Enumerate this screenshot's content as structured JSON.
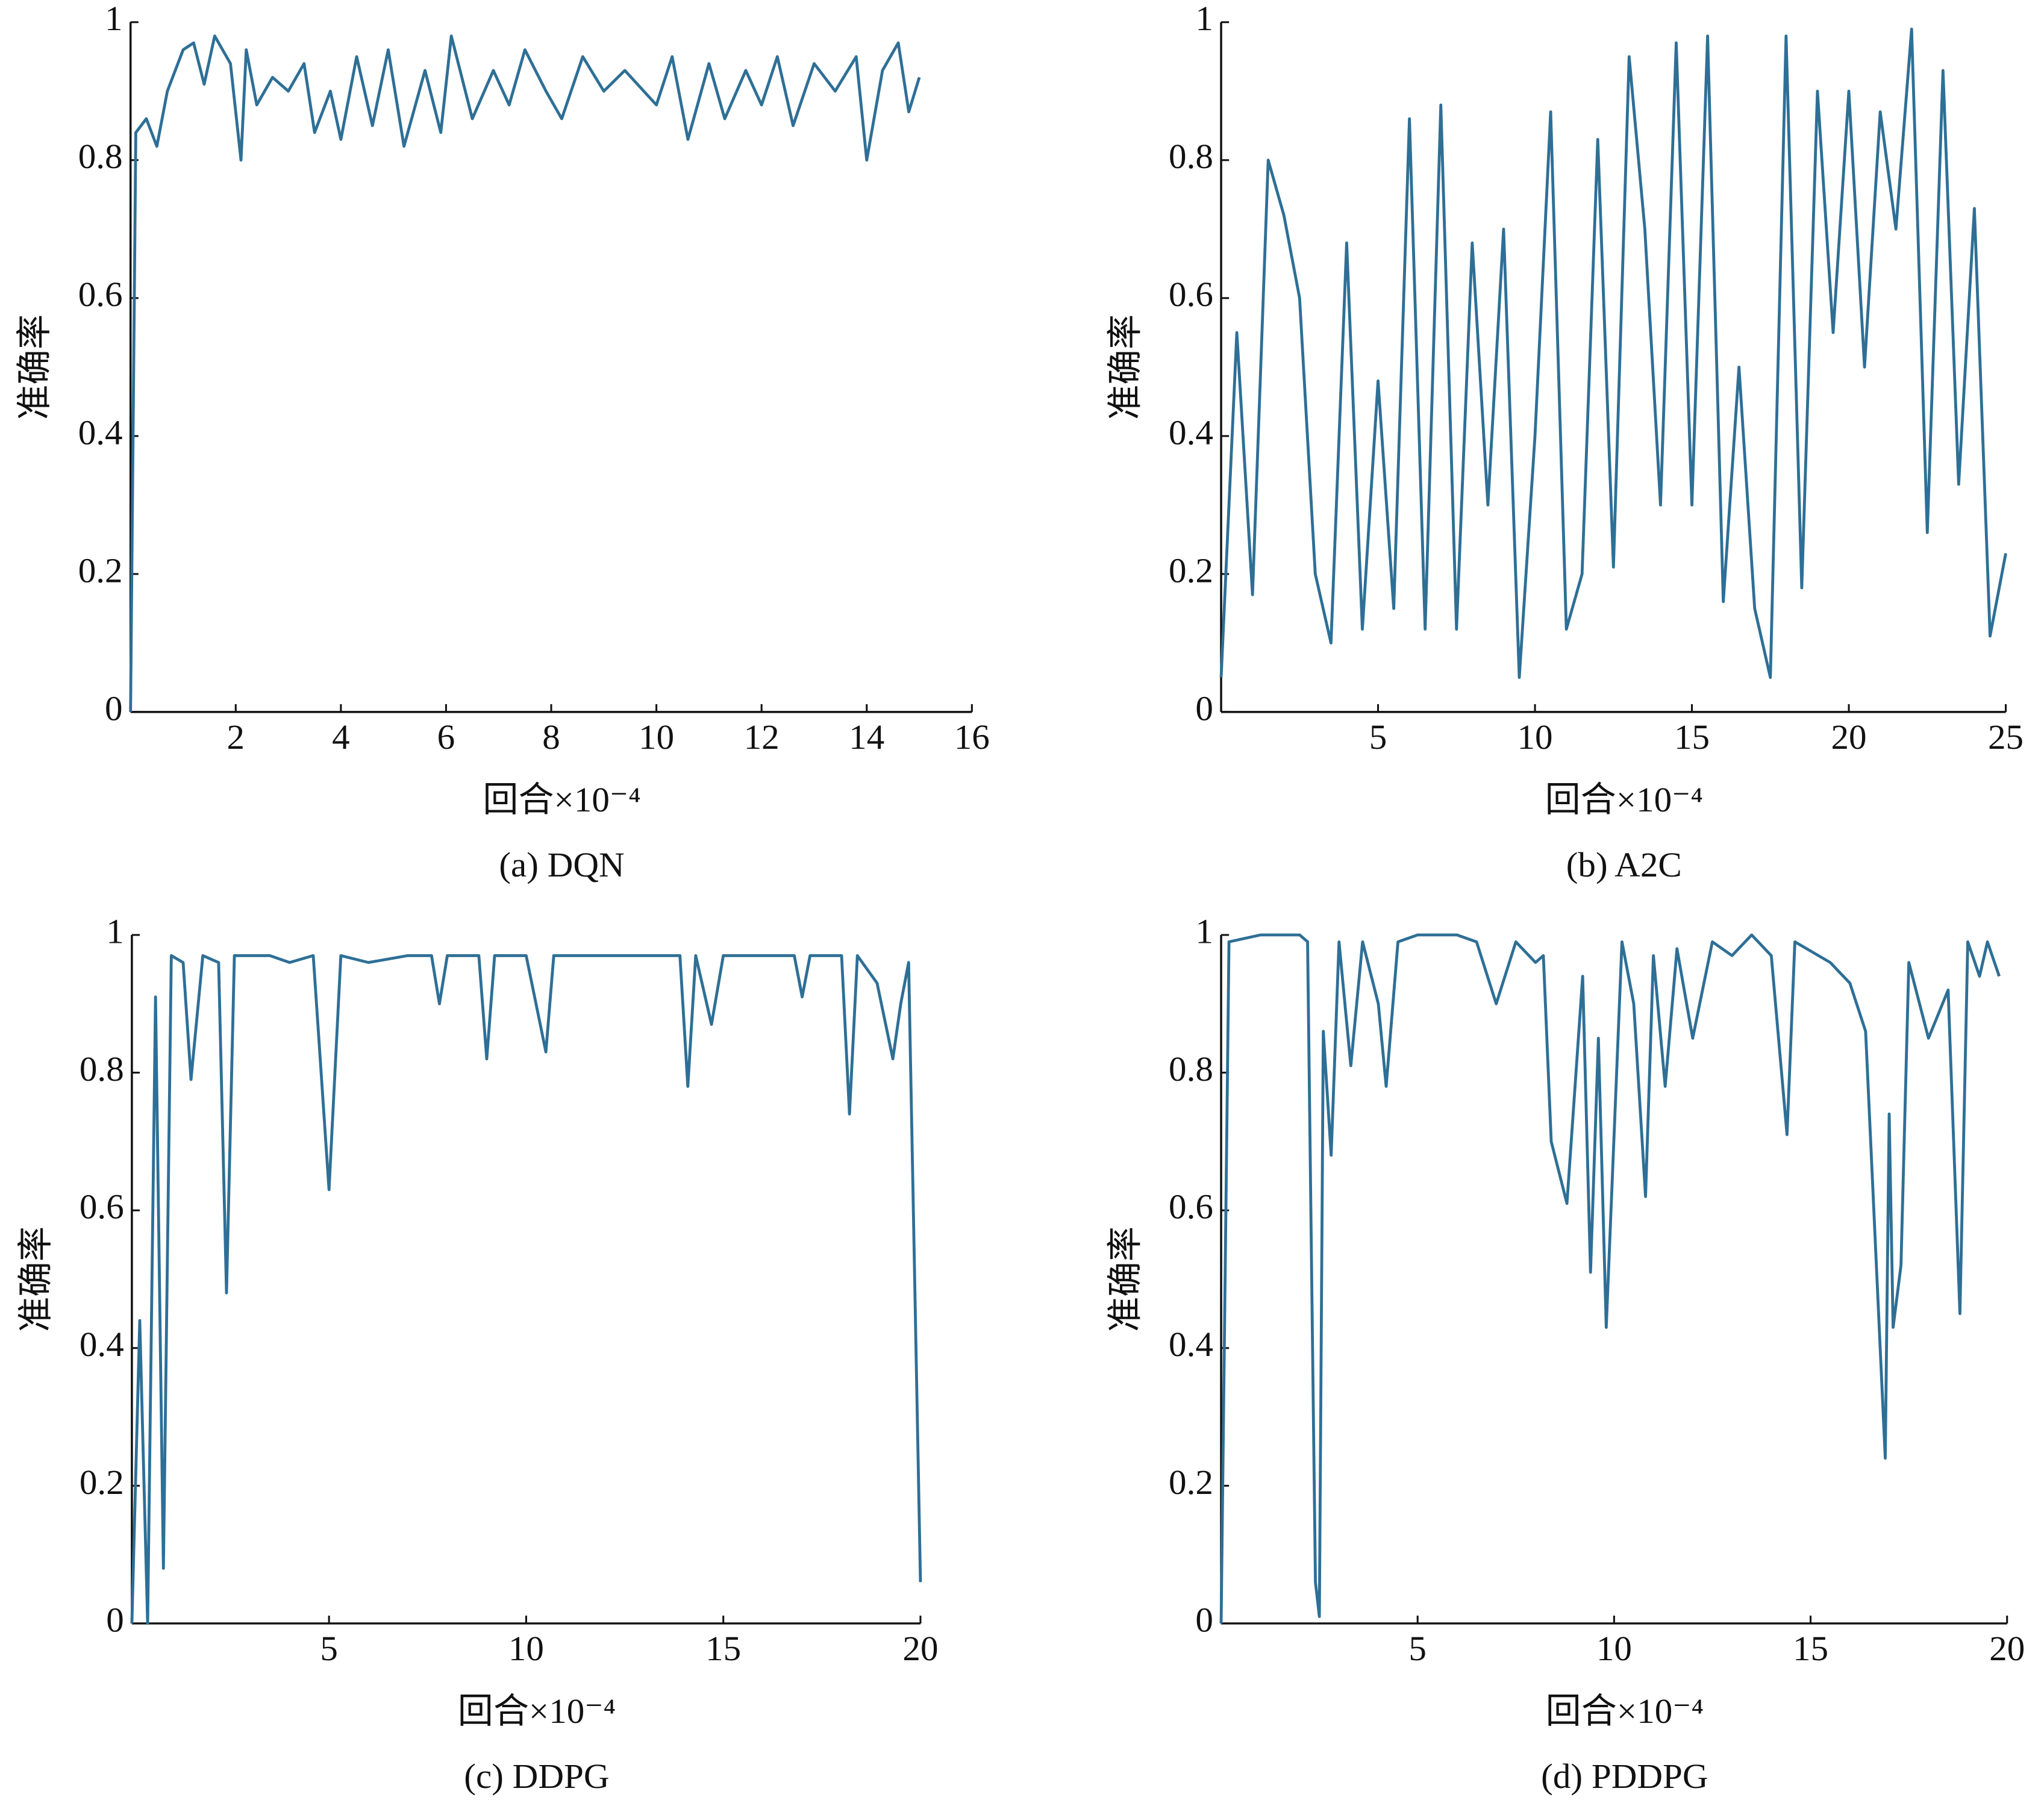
{
  "chart_data": [
    {
      "type": "line",
      "title": "(a) DQN",
      "xlabel": "回合×10⁻⁴",
      "ylabel": "准确率",
      "color": "#2e6f96",
      "xlim": [
        0,
        16
      ],
      "xticks": [
        2,
        4,
        6,
        8,
        10,
        12,
        14,
        16
      ],
      "ylim": [
        0,
        1
      ],
      "yticks": [
        0,
        0.2,
        0.4,
        0.6,
        0.8,
        1
      ],
      "x": [
        0,
        0.1,
        0.3,
        0.5,
        0.7,
        1,
        1.2,
        1.4,
        1.6,
        1.9,
        2.1,
        2.2,
        2.4,
        2.7,
        3,
        3.3,
        3.5,
        3.8,
        4,
        4.3,
        4.6,
        4.9,
        5.2,
        5.6,
        5.9,
        6.1,
        6.5,
        6.9,
        7.2,
        7.5,
        7.9,
        8.2,
        8.6,
        9,
        9.4,
        10,
        10.3,
        10.6,
        11,
        11.3,
        11.7,
        12,
        12.3,
        12.6,
        13,
        13.4,
        13.8,
        14,
        14.3,
        14.6,
        14.8,
        15
      ],
      "values": [
        0,
        0.84,
        0.86,
        0.82,
        0.9,
        0.96,
        0.97,
        0.91,
        0.98,
        0.94,
        0.8,
        0.96,
        0.88,
        0.92,
        0.9,
        0.94,
        0.84,
        0.9,
        0.83,
        0.95,
        0.85,
        0.96,
        0.82,
        0.93,
        0.84,
        0.98,
        0.86,
        0.93,
        0.88,
        0.96,
        0.9,
        0.86,
        0.95,
        0.9,
        0.93,
        0.88,
        0.95,
        0.83,
        0.94,
        0.86,
        0.93,
        0.88,
        0.95,
        0.85,
        0.94,
        0.9,
        0.95,
        0.8,
        0.93,
        0.97,
        0.87,
        0.92
      ]
    },
    {
      "type": "line",
      "title": "(b) A2C",
      "xlabel": "回合×10⁻⁴",
      "ylabel": "准确率",
      "color": "#2e6f96",
      "xlim": [
        0,
        25
      ],
      "xticks": [
        5,
        10,
        15,
        20,
        25
      ],
      "ylim": [
        0,
        1
      ],
      "yticks": [
        0,
        0.2,
        0.4,
        0.6,
        0.8,
        1
      ],
      "x": [
        0,
        0.5,
        1,
        1.5,
        2,
        2.5,
        3,
        3.5,
        4,
        4.5,
        5,
        5.5,
        6,
        6.5,
        7,
        7.5,
        8,
        8.5,
        9,
        9.5,
        10,
        10.5,
        11,
        11.5,
        12,
        12.5,
        13,
        13.5,
        14,
        14.5,
        15,
        15.5,
        16,
        16.5,
        17,
        17.5,
        18,
        18.5,
        19,
        19.5,
        20,
        20.5,
        21,
        21.5,
        22,
        22.5,
        23,
        23.5,
        24,
        24.5,
        25
      ],
      "values": [
        0.05,
        0.55,
        0.17,
        0.8,
        0.72,
        0.6,
        0.2,
        0.1,
        0.68,
        0.12,
        0.48,
        0.15,
        0.86,
        0.12,
        0.88,
        0.12,
        0.68,
        0.3,
        0.7,
        0.05,
        0.4,
        0.87,
        0.12,
        0.2,
        0.83,
        0.21,
        0.95,
        0.7,
        0.3,
        0.97,
        0.3,
        0.98,
        0.16,
        0.5,
        0.15,
        0.05,
        0.98,
        0.18,
        0.9,
        0.55,
        0.9,
        0.5,
        0.87,
        0.7,
        0.99,
        0.26,
        0.93,
        0.33,
        0.73,
        0.11,
        0.23
      ]
    },
    {
      "type": "line",
      "title": "(c) DDPG",
      "xlabel": "回合×10⁻⁴",
      "ylabel": "准确率",
      "color": "#2e6f96",
      "xlim": [
        0,
        20
      ],
      "xticks": [
        5,
        10,
        15,
        20
      ],
      "ylim": [
        0,
        1
      ],
      "yticks": [
        0,
        0.2,
        0.4,
        0.6,
        0.8,
        1
      ],
      "x": [
        0,
        0.2,
        0.4,
        0.6,
        0.8,
        1,
        1.3,
        1.5,
        1.8,
        2.2,
        2.4,
        2.6,
        3.5,
        4,
        4.6,
        5,
        5.3,
        6,
        7,
        7.6,
        7.8,
        8,
        8.8,
        9,
        9.2,
        10,
        10.5,
        10.7,
        12,
        13,
        13.9,
        14.1,
        14.3,
        14.7,
        15,
        16,
        16.8,
        17,
        17.2,
        18,
        18.2,
        18.4,
        18.9,
        19.3,
        19.5,
        19.7,
        20
      ],
      "values": [
        0,
        0.44,
        0,
        0.91,
        0.08,
        0.97,
        0.96,
        0.79,
        0.97,
        0.96,
        0.48,
        0.97,
        0.97,
        0.96,
        0.97,
        0.63,
        0.97,
        0.96,
        0.97,
        0.97,
        0.9,
        0.97,
        0.97,
        0.82,
        0.97,
        0.97,
        0.83,
        0.97,
        0.97,
        0.97,
        0.97,
        0.78,
        0.97,
        0.87,
        0.97,
        0.97,
        0.97,
        0.91,
        0.97,
        0.97,
        0.74,
        0.97,
        0.93,
        0.82,
        0.9,
        0.96,
        0.06
      ]
    },
    {
      "type": "line",
      "title": "(d) PDDPG",
      "xlabel": "回合×10⁻⁴",
      "ylabel": "准确率",
      "color": "#2e6f96",
      "xlim": [
        0,
        20
      ],
      "xticks": [
        5,
        10,
        15,
        20
      ],
      "ylim": [
        0,
        1
      ],
      "yticks": [
        0,
        0.2,
        0.4,
        0.6,
        0.8,
        1
      ],
      "x": [
        0,
        0.2,
        1,
        2,
        2.2,
        2.4,
        2.5,
        2.6,
        2.8,
        3,
        3.3,
        3.6,
        4,
        4.2,
        4.5,
        5,
        6,
        6.5,
        7,
        7.5,
        8,
        8.2,
        8.4,
        8.8,
        9.2,
        9.4,
        9.6,
        9.8,
        10.2,
        10.5,
        10.8,
        11,
        11.3,
        11.6,
        12,
        12.5,
        13,
        13.5,
        14,
        14.4,
        14.6,
        15.5,
        16,
        16.4,
        16.9,
        17,
        17.1,
        17.3,
        17.5,
        18,
        18.5,
        18.8,
        19,
        19.3,
        19.5,
        19.8
      ],
      "values": [
        0,
        0.99,
        1,
        1,
        0.99,
        0.06,
        0.01,
        0.86,
        0.68,
        0.99,
        0.81,
        0.99,
        0.9,
        0.78,
        0.99,
        1,
        1,
        0.99,
        0.9,
        0.99,
        0.96,
        0.97,
        0.7,
        0.61,
        0.94,
        0.51,
        0.85,
        0.43,
        0.99,
        0.9,
        0.62,
        0.97,
        0.78,
        0.98,
        0.85,
        0.99,
        0.97,
        1,
        0.97,
        0.71,
        0.99,
        0.96,
        0.93,
        0.86,
        0.24,
        0.74,
        0.43,
        0.52,
        0.96,
        0.85,
        0.92,
        0.45,
        0.99,
        0.94,
        0.99,
        0.94
      ]
    }
  ]
}
